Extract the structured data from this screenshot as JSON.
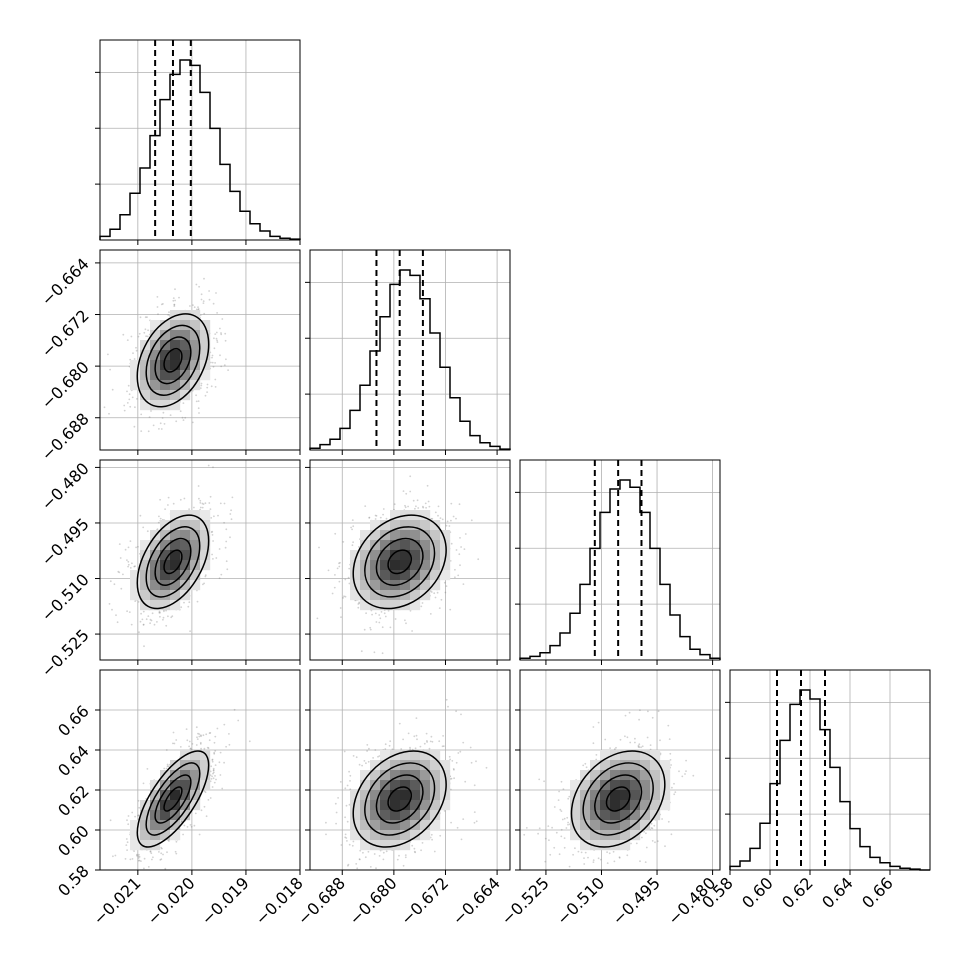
{
  "chart_data": {
    "type": "corner",
    "parameters": [
      {
        "range": [
          -0.0217,
          -0.018
        ],
        "mean": -0.02035,
        "sigma": 0.00033,
        "q": [
          -0.02068,
          -0.02035,
          -0.02002
        ],
        "ticks": [
          -0.021,
          -0.02,
          -0.019,
          -0.018
        ],
        "tick_labels": [
          "−0.021",
          "−0.020",
          "−0.019",
          "−0.018"
        ],
        "hist": [
          0.02,
          0.06,
          0.14,
          0.26,
          0.4,
          0.58,
          0.78,
          0.92,
          1.0,
          0.97,
          0.82,
          0.62,
          0.42,
          0.27,
          0.16,
          0.09,
          0.05,
          0.02,
          0.01,
          0.005
        ]
      },
      {
        "range": [
          -0.693,
          -0.662
        ],
        "mean": -0.6791,
        "sigma": 0.0036,
        "q": [
          -0.6827,
          -0.6791,
          -0.6755
        ],
        "ticks": [
          -0.688,
          -0.68,
          -0.672,
          -0.664
        ],
        "tick_labels": [
          "−0.688",
          "−0.680",
          "−0.672",
          "−0.664"
        ],
        "hist": [
          0.01,
          0.03,
          0.06,
          0.12,
          0.22,
          0.36,
          0.55,
          0.74,
          0.92,
          1.0,
          0.97,
          0.84,
          0.65,
          0.46,
          0.29,
          0.16,
          0.08,
          0.04,
          0.02,
          0.005
        ]
      },
      {
        "range": [
          -0.532,
          -0.478
        ],
        "mean": -0.5055,
        "sigma": 0.0063,
        "q": [
          -0.5118,
          -0.5055,
          -0.4992
        ],
        "ticks": [
          -0.525,
          -0.51,
          -0.495,
          -0.48
        ],
        "tick_labels": [
          "−0.525",
          "−0.510",
          "−0.495",
          "−0.480"
        ],
        "hist": [
          0.01,
          0.02,
          0.04,
          0.08,
          0.15,
          0.26,
          0.42,
          0.62,
          0.82,
          0.95,
          1.0,
          0.96,
          0.82,
          0.62,
          0.42,
          0.25,
          0.13,
          0.06,
          0.03,
          0.01
        ]
      },
      {
        "range": [
          0.58,
          0.68
        ],
        "mean": 0.6155,
        "sigma": 0.012,
        "q": [
          0.6035,
          0.6155,
          0.6275
        ],
        "ticks": [
          0.58,
          0.6,
          0.62,
          0.64,
          0.66
        ],
        "tick_labels": [
          "0.58",
          "0.60",
          "0.62",
          "0.64",
          "0.66"
        ],
        "hist": [
          0.02,
          0.05,
          0.12,
          0.26,
          0.48,
          0.72,
          0.92,
          1.0,
          0.95,
          0.78,
          0.57,
          0.38,
          0.23,
          0.13,
          0.07,
          0.04,
          0.02,
          0.01,
          0.005,
          0.0
        ]
      }
    ],
    "correlations": [
      [
        1,
        0.35,
        0.45,
        0.7
      ],
      [
        0.35,
        1,
        0.25,
        0.3
      ],
      [
        0.45,
        0.25,
        1,
        0.3
      ],
      [
        0.7,
        0.3,
        0.3,
        1
      ]
    ],
    "contour_levels_sigma": [
      0.5,
      1.0,
      1.5,
      2.0
    ],
    "quantile_lines": "dashed",
    "grid": true
  }
}
